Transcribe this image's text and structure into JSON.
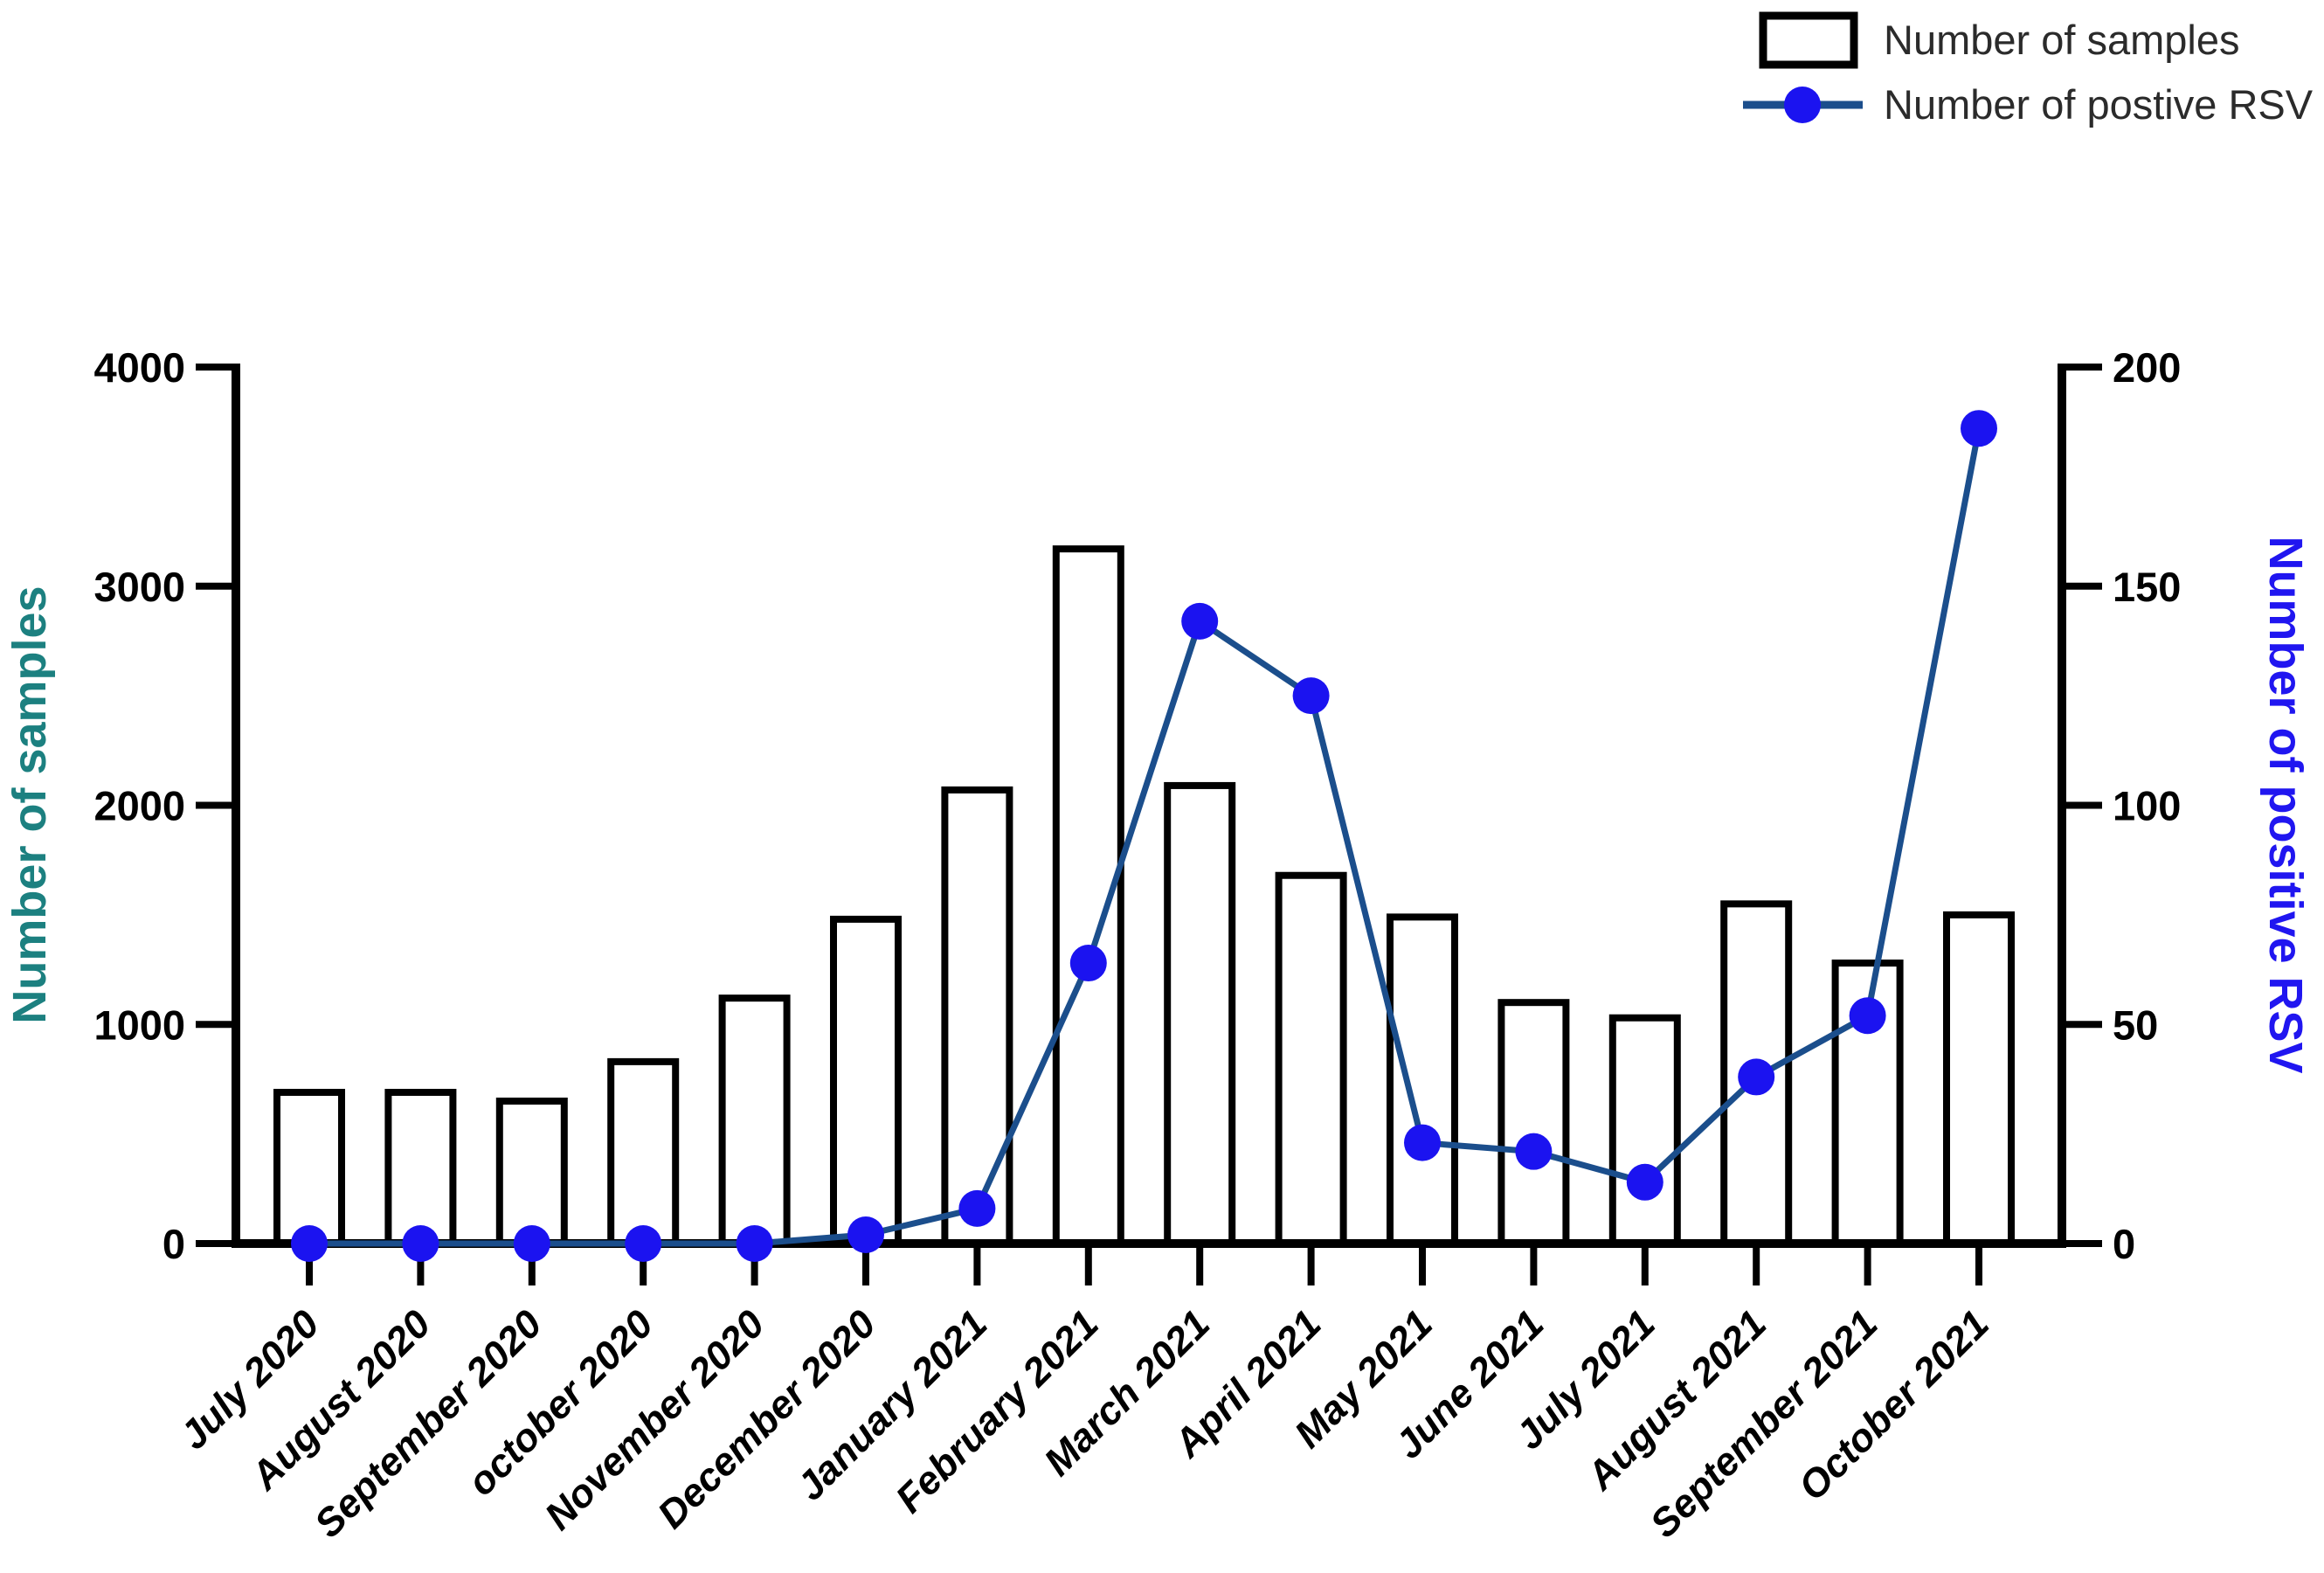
{
  "page": {
    "background": "#ffffff"
  },
  "legend": {
    "position": "top-right",
    "items": [
      {
        "label": "Number of samples",
        "swatch": "open-rect",
        "stroke": "#000000",
        "fill": "#ffffff"
      },
      {
        "label": "Number of postive RSV",
        "swatch": "line-dot",
        "line_color": "#1b4e8c",
        "dot_color": "#1b13f0"
      }
    ]
  },
  "axes": {
    "left": {
      "title": "Number of samples",
      "title_color": "#1c8080",
      "tick_color": "#000000",
      "ticks": [
        0,
        1000,
        2000,
        3000,
        4000
      ],
      "range": [
        0,
        4000
      ]
    },
    "right": {
      "title": "Number of positive RSV",
      "title_color": "#2016f0",
      "tick_color": "#000000",
      "ticks": [
        0,
        50,
        100,
        150,
        200
      ],
      "range": [
        0,
        200
      ]
    }
  },
  "chart_data": {
    "type": "bar+line",
    "title": "",
    "xlabel": "",
    "ylabel_left": "Number of samples",
    "ylabel_right": "Number of positive RSV",
    "ylim_left": [
      0,
      4000
    ],
    "ylim_right": [
      0,
      200
    ],
    "grid": false,
    "legend_position": "top-right",
    "categories": [
      "July 2020",
      "August 2020",
      "September 2020",
      "october 2020",
      "November 2020",
      "December 2020",
      "January 2021",
      "February 2021",
      "March 2021",
      "April 2021",
      "May 2021",
      "June 2021",
      "July 2021",
      "August 2021",
      "September 2021",
      "October 2021"
    ],
    "series": [
      {
        "name": "Number of samples",
        "type": "bar",
        "axis": "left",
        "bar_fill": "#ffffff",
        "bar_stroke": "#000000",
        "values": [
          690,
          690,
          650,
          830,
          1120,
          1480,
          2070,
          3170,
          2090,
          1680,
          1490,
          1100,
          1030,
          1550,
          1280,
          1500
        ]
      },
      {
        "name": "Number of postive RSV",
        "type": "line",
        "axis": "right",
        "line_color": "#1b4e8c",
        "marker_color": "#1b13f0",
        "values": [
          0,
          0,
          0,
          0,
          0,
          2,
          8,
          64,
          142,
          125,
          23,
          21,
          14,
          38,
          52,
          186
        ]
      }
    ]
  }
}
